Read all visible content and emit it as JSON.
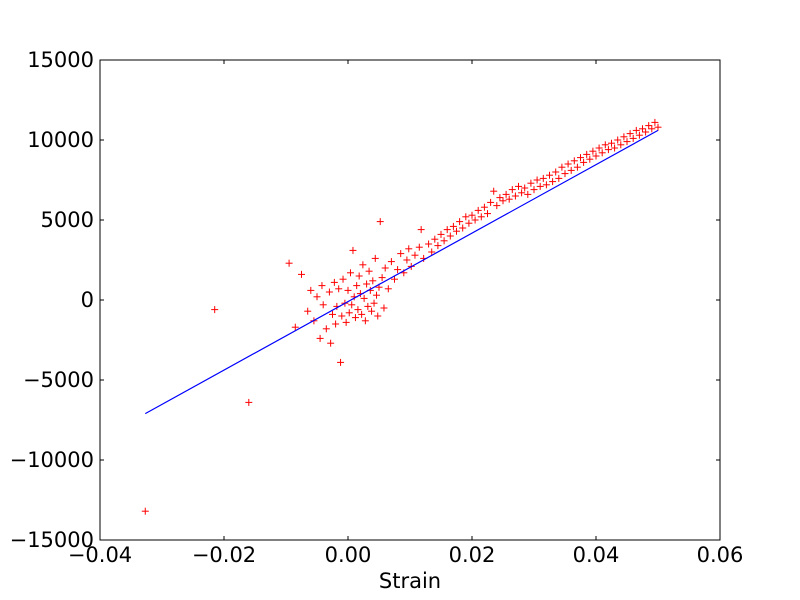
{
  "chart_data": {
    "type": "scatter",
    "title": "",
    "xlabel": "Strain",
    "ylabel": "",
    "xlim": [
      -0.04,
      0.06
    ],
    "ylim": [
      -15000,
      15000
    ],
    "grid": false,
    "xticks": [
      -0.04,
      -0.02,
      0.0,
      0.02,
      0.04,
      0.06
    ],
    "xtick_labels": [
      "−0.04",
      "−0.02",
      "0.00",
      "0.02",
      "0.04",
      "0.06"
    ],
    "yticks": [
      -15000,
      -10000,
      -5000,
      0,
      5000,
      10000,
      15000
    ],
    "ytick_labels": [
      "−15000",
      "−10000",
      "−5000",
      "0",
      "5000",
      "10000",
      "15000"
    ],
    "series": [
      {
        "kind": "scatter",
        "marker": "+",
        "color": "#ff0000",
        "points": [
          [
            -0.0327,
            -13200
          ],
          [
            -0.0215,
            -600
          ],
          [
            -0.016,
            -6400
          ],
          [
            -0.0095,
            2300
          ],
          [
            -0.0085,
            -1700
          ],
          [
            -0.0075,
            1600
          ],
          [
            -0.0065,
            -700
          ],
          [
            -0.006,
            600
          ],
          [
            -0.0055,
            -1300
          ],
          [
            -0.005,
            200
          ],
          [
            -0.0045,
            -2400
          ],
          [
            -0.0042,
            900
          ],
          [
            -0.004,
            -300
          ],
          [
            -0.0035,
            -1800
          ],
          [
            -0.003,
            500
          ],
          [
            -0.0028,
            -2700
          ],
          [
            -0.0025,
            -900
          ],
          [
            -0.0022,
            1100
          ],
          [
            -0.002,
            -1500
          ],
          [
            -0.0018,
            -400
          ],
          [
            -0.0015,
            700
          ],
          [
            -0.0012,
            -3900
          ],
          [
            -0.001,
            -1000
          ],
          [
            -0.0008,
            1300
          ],
          [
            -0.0005,
            -200
          ],
          [
            -0.0003,
            -1400
          ],
          [
            0.0,
            600
          ],
          [
            0.0002,
            -800
          ],
          [
            0.0004,
            1700
          ],
          [
            0.0006,
            -300
          ],
          [
            0.0008,
            3100
          ],
          [
            0.001,
            200
          ],
          [
            0.0012,
            -1100
          ],
          [
            0.0014,
            900
          ],
          [
            0.0016,
            -600
          ],
          [
            0.0018,
            1500
          ],
          [
            0.002,
            400
          ],
          [
            0.0022,
            -900
          ],
          [
            0.0024,
            2200
          ],
          [
            0.0026,
            100
          ],
          [
            0.0028,
            -1300
          ],
          [
            0.003,
            1000
          ],
          [
            0.0032,
            -400
          ],
          [
            0.0034,
            1800
          ],
          [
            0.0036,
            600
          ],
          [
            0.0038,
            -700
          ],
          [
            0.004,
            1200
          ],
          [
            0.0042,
            -200
          ],
          [
            0.0044,
            2600
          ],
          [
            0.0046,
            300
          ],
          [
            0.0048,
            -1000
          ],
          [
            0.005,
            800
          ],
          [
            0.0052,
            4900
          ],
          [
            0.0055,
            1400
          ],
          [
            0.0058,
            -500
          ],
          [
            0.006,
            2000
          ],
          [
            0.0065,
            700
          ],
          [
            0.007,
            2400
          ],
          [
            0.0075,
            1300
          ],
          [
            0.008,
            1900
          ],
          [
            0.0085,
            2900
          ],
          [
            0.009,
            1700
          ],
          [
            0.0095,
            2500
          ],
          [
            0.0098,
            3200
          ],
          [
            0.0102,
            2100
          ],
          [
            0.0108,
            2800
          ],
          [
            0.0115,
            3300
          ],
          [
            0.0118,
            4400
          ],
          [
            0.0122,
            2600
          ],
          [
            0.013,
            3500
          ],
          [
            0.0135,
            3000
          ],
          [
            0.014,
            3800
          ],
          [
            0.0145,
            3400
          ],
          [
            0.015,
            4100
          ],
          [
            0.0155,
            3700
          ],
          [
            0.016,
            4400
          ],
          [
            0.0165,
            4000
          ],
          [
            0.017,
            4600
          ],
          [
            0.0175,
            4300
          ],
          [
            0.018,
            4900
          ],
          [
            0.0185,
            4500
          ],
          [
            0.019,
            5200
          ],
          [
            0.0195,
            4800
          ],
          [
            0.02,
            5300
          ],
          [
            0.0205,
            5000
          ],
          [
            0.021,
            5600
          ],
          [
            0.0215,
            5200
          ],
          [
            0.022,
            5800
          ],
          [
            0.0225,
            5400
          ],
          [
            0.023,
            6100
          ],
          [
            0.0235,
            6800
          ],
          [
            0.024,
            5900
          ],
          [
            0.0245,
            6400
          ],
          [
            0.025,
            6200
          ],
          [
            0.0255,
            6600
          ],
          [
            0.026,
            6300
          ],
          [
            0.0265,
            6900
          ],
          [
            0.027,
            6500
          ],
          [
            0.0275,
            7100
          ],
          [
            0.028,
            6700
          ],
          [
            0.0285,
            7000
          ],
          [
            0.029,
            6600
          ],
          [
            0.0295,
            7300
          ],
          [
            0.03,
            6900
          ],
          [
            0.0305,
            7500
          ],
          [
            0.031,
            7100
          ],
          [
            0.0315,
            7600
          ],
          [
            0.032,
            7200
          ],
          [
            0.0325,
            7800
          ],
          [
            0.033,
            7400
          ],
          [
            0.0335,
            8000
          ],
          [
            0.034,
            7600
          ],
          [
            0.0345,
            8300
          ],
          [
            0.035,
            7900
          ],
          [
            0.0355,
            8500
          ],
          [
            0.036,
            8100
          ],
          [
            0.0365,
            8700
          ],
          [
            0.037,
            8300
          ],
          [
            0.0375,
            8900
          ],
          [
            0.038,
            8600
          ],
          [
            0.0385,
            9100
          ],
          [
            0.039,
            8800
          ],
          [
            0.0395,
            9300
          ],
          [
            0.04,
            9000
          ],
          [
            0.0405,
            9500
          ],
          [
            0.041,
            9200
          ],
          [
            0.0415,
            9700
          ],
          [
            0.042,
            9400
          ],
          [
            0.0425,
            9800
          ],
          [
            0.043,
            9500
          ],
          [
            0.0435,
            10000
          ],
          [
            0.044,
            9700
          ],
          [
            0.0445,
            10200
          ],
          [
            0.045,
            9900
          ],
          [
            0.0455,
            10400
          ],
          [
            0.046,
            10100
          ],
          [
            0.0465,
            10600
          ],
          [
            0.047,
            10300
          ],
          [
            0.0475,
            10700
          ],
          [
            0.048,
            10500
          ],
          [
            0.0485,
            10900
          ],
          [
            0.049,
            10700
          ],
          [
            0.0495,
            11100
          ],
          [
            0.05,
            10800
          ]
        ]
      },
      {
        "kind": "line",
        "color": "#0000ff",
        "points": [
          [
            -0.0327,
            -7100
          ],
          [
            0.05,
            10600
          ]
        ]
      }
    ]
  }
}
